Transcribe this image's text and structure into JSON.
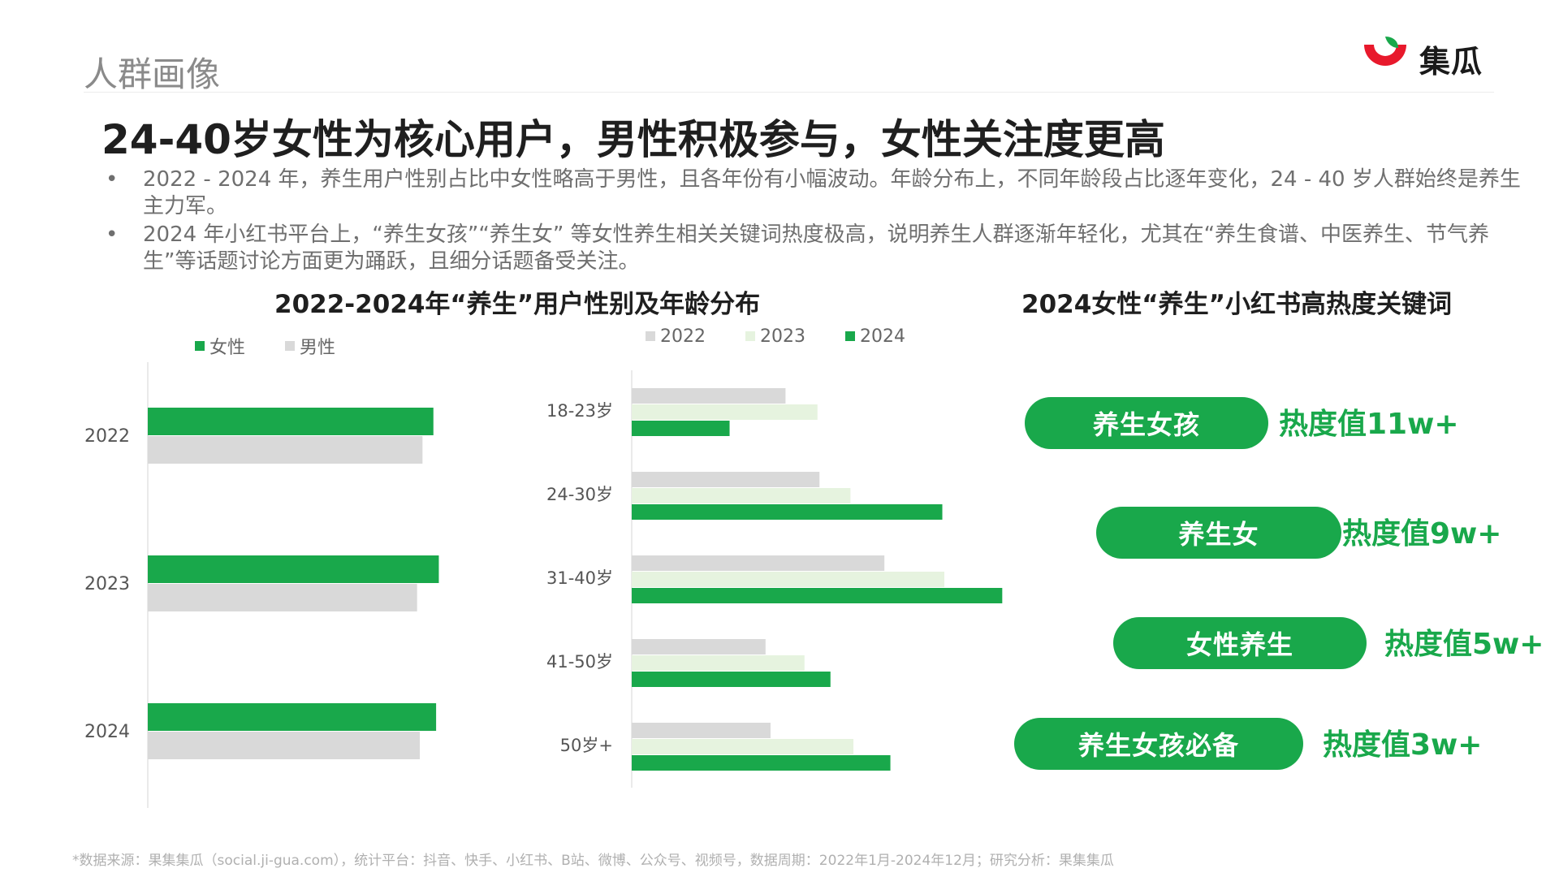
{
  "header": {
    "section_label": "人群画像",
    "logo_text": "集瓜",
    "logo_colors": {
      "red": "#e8192c",
      "green": "#19a84b"
    }
  },
  "headline": "24-40岁女性为核心用户，男性积极参与，女性关注度更高",
  "bullets": [
    "2022 - 2024 年，养生用户性别占比中女性略高于男性，且各年份有小幅波动。年龄分布上，不同年龄段占比逐年变化，24 - 40 岁人群始终是养生主力军。",
    "2024 年小红书平台上，“养生女孩”“养生女” 等女性养生相关关键词热度极高，说明养生人群逐渐年轻化，尤其在“养生食谱、中医养生、节气养生”等话题讨论方面更为踊跃，且细分话题备受关注。"
  ],
  "chart_section_title": "2022-2024年“养生”用户性别及年龄分布",
  "keywords": {
    "title": "2024女性“养生”小红书高热度关键词",
    "accent": "#19a84b",
    "items": [
      {
        "keyword": "养生女孩",
        "heat": "热度值11w+"
      },
      {
        "keyword": "养生女",
        "heat": "热度值9w+"
      },
      {
        "keyword": "女性养生",
        "heat": "热度值5w+"
      },
      {
        "keyword": "养生女孩必备",
        "heat": "热度值3w+"
      }
    ]
  },
  "chart_data": [
    {
      "type": "bar",
      "orientation": "horizontal",
      "categories": [
        "2022",
        "2023",
        "2024"
      ],
      "series": [
        {
          "name": "女性",
          "color": "#19a84b",
          "values": [
            52.5,
            53.5,
            53.0
          ]
        },
        {
          "name": "男性",
          "color": "#d9d9d9",
          "values": [
            50.5,
            49.5,
            50.0
          ]
        }
      ],
      "xlim": [
        0,
        100
      ],
      "legend_position": "top-left",
      "grid": false
    },
    {
      "type": "bar",
      "orientation": "horizontal",
      "categories": [
        "18-23岁",
        "24-30岁",
        "31-40岁",
        "41-50岁",
        "50岁+"
      ],
      "series": [
        {
          "name": "2022",
          "color": "#d9d9d9",
          "values": [
            15.4,
            18.8,
            25.3,
            13.4,
            13.9
          ]
        },
        {
          "name": "2023",
          "color": "#e6f3df",
          "values": [
            18.6,
            21.9,
            31.3,
            17.3,
            22.2
          ]
        },
        {
          "name": "2024",
          "color": "#19a84b",
          "values": [
            9.8,
            31.1,
            37.1,
            19.9,
            25.9
          ]
        }
      ],
      "xlim": [
        0,
        100
      ],
      "legend_position": "top",
      "grid": false
    }
  ],
  "footnote": "*数据来源：果集集瓜（social.ji-gua.com），统计平台：抖音、快手、小红书、B站、微博、公众号、视频号，数据周期：2022年1月-2024年12月；研究分析：果集集瓜"
}
